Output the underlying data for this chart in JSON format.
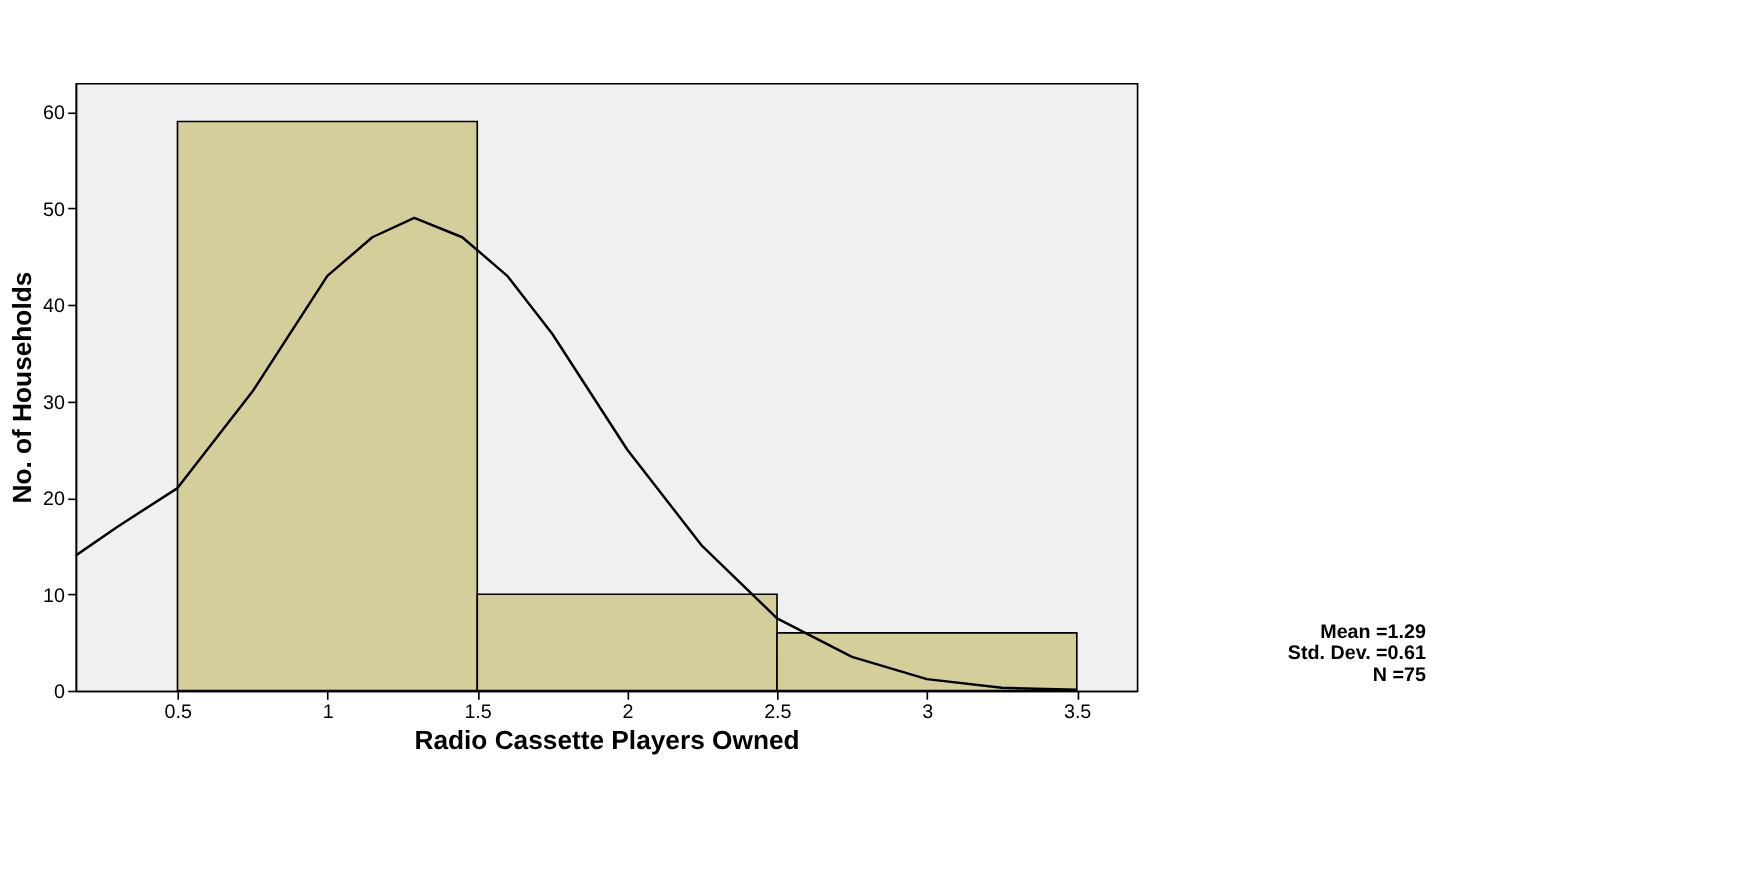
{
  "chart_data": {
    "type": "histogram",
    "xlabel": "Radio Cassette Players Owned",
    "ylabel": "No. of Households",
    "bins": [
      0.5,
      1.5,
      2.5,
      3.5
    ],
    "values": [
      59,
      10,
      6
    ],
    "color": "#d4cf9a",
    "series": [
      {
        "type": "line",
        "color": "#000000",
        "x": [
          0.16,
          0.3,
          0.5,
          0.75,
          1.0,
          1.15,
          1.29,
          1.45,
          1.6,
          1.75,
          2.0,
          2.25,
          2.5,
          2.75,
          3.0,
          3.25,
          3.5
        ],
        "values": [
          14,
          17,
          21,
          31,
          43,
          47,
          49,
          47,
          43,
          37,
          25,
          15,
          7.5,
          3.5,
          1.2,
          0.3,
          0.1
        ]
      }
    ],
    "xlim": [
      0.16,
      3.7
    ],
    "ylim": [
      0,
      63
    ],
    "xticks": [
      0.5,
      1,
      1.5,
      2,
      2.5,
      3,
      3.5
    ],
    "yticks": [
      0,
      10,
      20,
      30,
      40,
      50,
      60
    ],
    "grid": false,
    "annotations": [
      "Mean =1.29",
      "Std. Dev. =0.61",
      "N =75"
    ]
  }
}
